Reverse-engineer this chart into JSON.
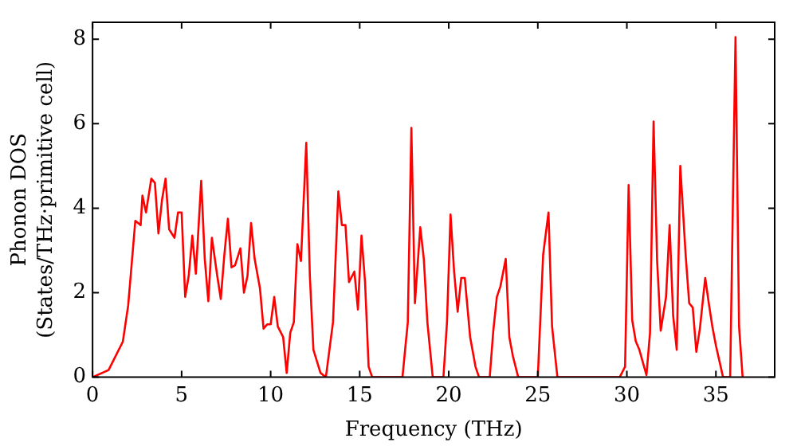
{
  "chart_data": {
    "type": "line",
    "xlabel": "Frequency (THz)",
    "ylabel": "Phonon DOS\n(States/THz·primitive cell)",
    "xlim": [
      0,
      38.3
    ],
    "xticks": [
      0,
      5,
      10,
      15,
      20,
      25,
      30,
      35
    ],
    "ylim": [
      0,
      8.4
    ],
    "yticks": [
      0,
      2,
      4,
      6,
      8
    ],
    "grid": false,
    "legend": false,
    "marker": "none",
    "line_style": "solid",
    "series": [
      {
        "color": "#ff0000",
        "x": [
          0,
          0.9,
          1.7,
          2.0,
          2.1,
          2.4,
          2.7,
          2.8,
          3.0,
          3.3,
          3.5,
          3.7,
          3.9,
          4.1,
          4.3,
          4.6,
          4.8,
          5.0,
          5.2,
          5.4,
          5.6,
          5.8,
          6.1,
          6.3,
          6.5,
          6.7,
          7.0,
          7.2,
          7.4,
          7.6,
          7.8,
          8.0,
          8.3,
          8.5,
          8.7,
          8.9,
          9.1,
          9.4,
          9.6,
          9.8,
          10.0,
          10.2,
          10.4,
          10.7,
          10.9,
          11.1,
          11.3,
          11.5,
          11.7,
          12.0,
          12.2,
          12.4,
          12.8,
          13.1,
          13.5,
          13.8,
          14.0,
          14.2,
          14.4,
          14.7,
          14.9,
          15.1,
          15.3,
          15.5,
          15.7,
          17.4,
          17.7,
          17.9,
          18.1,
          18.4,
          18.6,
          18.8,
          19.1,
          19.7,
          19.9,
          20.1,
          20.3,
          20.5,
          20.7,
          20.9,
          21.2,
          21.5,
          21.7,
          22.3,
          22.5,
          22.7,
          22.9,
          23.2,
          23.4,
          23.6,
          23.9,
          25.0,
          25.3,
          25.6,
          25.8,
          26.1,
          29.6,
          29.9,
          30.1,
          30.3,
          30.5,
          30.7,
          30.9,
          31.1,
          31.3,
          31.5,
          31.7,
          31.9,
          32.2,
          32.4,
          32.6,
          32.8,
          33.0,
          33.3,
          33.5,
          33.7,
          33.9,
          34.1,
          34.4,
          34.6,
          34.8,
          35.0,
          35.4,
          35.8,
          36.1,
          36.3,
          36.5
        ],
        "values": [
          0,
          0.17,
          0.84,
          1.7,
          2.2,
          3.7,
          3.6,
          4.3,
          3.9,
          4.7,
          4.6,
          3.4,
          4.2,
          4.7,
          3.5,
          3.3,
          3.9,
          3.9,
          1.9,
          2.4,
          3.35,
          2.45,
          4.65,
          2.8,
          1.8,
          3.3,
          2.4,
          1.85,
          2.9,
          3.75,
          2.6,
          2.65,
          3.05,
          2.0,
          2.4,
          3.65,
          2.8,
          2.1,
          1.15,
          1.25,
          1.25,
          1.9,
          1.2,
          0.95,
          0.1,
          1.05,
          1.3,
          3.15,
          2.75,
          5.55,
          2.4,
          0.65,
          0.1,
          0,
          1.3,
          4.4,
          3.6,
          3.6,
          2.25,
          2.5,
          1.6,
          3.35,
          2.25,
          0.25,
          0,
          0,
          1.3,
          5.9,
          1.75,
          3.55,
          2.8,
          1.3,
          0,
          0,
          1.3,
          3.85,
          2.5,
          1.55,
          2.35,
          2.35,
          0.95,
          0.25,
          0,
          0,
          1.1,
          1.9,
          2.15,
          2.8,
          0.95,
          0.5,
          0,
          0,
          2.9,
          3.9,
          1.2,
          0,
          0,
          0.25,
          4.55,
          1.35,
          0.85,
          0.65,
          0.35,
          0.05,
          1.05,
          6.05,
          2.75,
          1.1,
          1.9,
          3.6,
          1.45,
          0.65,
          5.0,
          2.9,
          1.75,
          1.65,
          0.6,
          1.15,
          2.35,
          1.75,
          1.2,
          0.75,
          0,
          0,
          8.05,
          1.2,
          0
        ]
      }
    ]
  }
}
